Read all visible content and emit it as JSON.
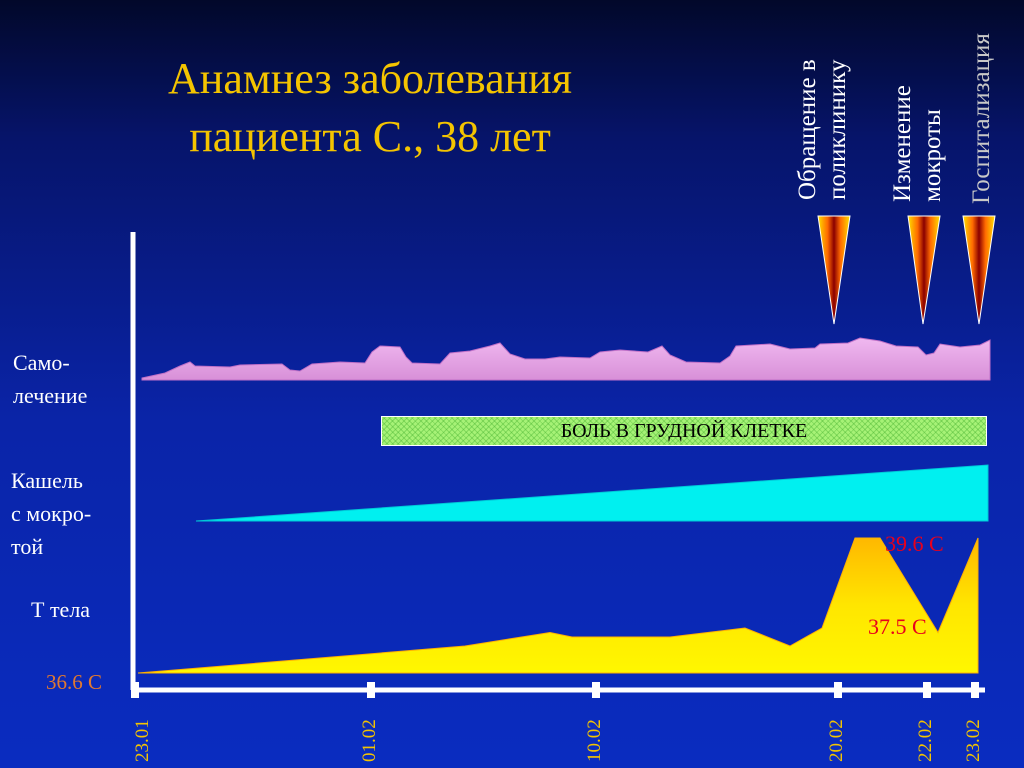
{
  "title": {
    "line1": "Анамнез заболевания",
    "line2": "пациента С., 38 лет"
  },
  "labels": {
    "self_treatment": [
      "Само-",
      "лечение"
    ],
    "cough": [
      "Кашель",
      "с мокро-",
      "той"
    ],
    "temperature": "Т тела",
    "chest_pain": "БОЛЬ В ГРУДНОЙ КЛЕТКЕ"
  },
  "events": [
    {
      "date": "20.02",
      "lines": [
        "Обращение в",
        "поликлинику"
      ]
    },
    {
      "date": "22.02",
      "lines": [
        "Изменение",
        "мокроты"
      ]
    },
    {
      "date": "23.02",
      "lines": [
        "Госпитализация"
      ]
    }
  ],
  "colors": {
    "title": "#f4c400",
    "self_treatment_fill": "#e8a8e8",
    "cough_fill": "#00f0f0",
    "temperature_fill": "#ffe600",
    "pain_fill": "#a6f276",
    "temp_label": "#e8001c",
    "baseline_label": "#e07830",
    "date_label": "#f4c400"
  },
  "chart_data": {
    "type": "area",
    "x_dates": [
      "23.01",
      "01.02",
      "10.02",
      "20.02",
      "22.02",
      "23.02"
    ],
    "temperature": {
      "baseline_label": "36.6 C",
      "peak_label": "39.6 C",
      "dip_label": "37.5 C",
      "points": [
        {
          "x": "23.01",
          "y": 36.6
        },
        {
          "x": "02.02",
          "y": 37.2
        },
        {
          "x": "07.02",
          "y": 37.5
        },
        {
          "x": "08.02",
          "y": 37.4
        },
        {
          "x": "14.02",
          "y": 37.4
        },
        {
          "x": "17.02",
          "y": 37.6
        },
        {
          "x": "19.02",
          "y": 37.2
        },
        {
          "x": "20.02",
          "y": 37.6
        },
        {
          "x": "20.5.02",
          "y": 39.6
        },
        {
          "x": "21.5.02",
          "y": 39.6
        },
        {
          "x": "22.02",
          "y": 37.5
        },
        {
          "x": "23.02",
          "y": 39.6
        }
      ]
    }
  }
}
